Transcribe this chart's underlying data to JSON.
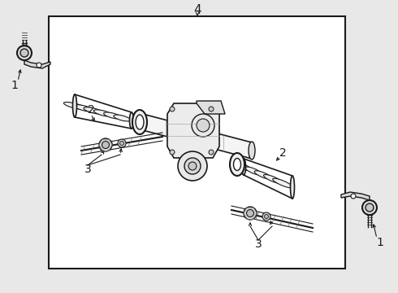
{
  "bg_color": "#e8e8e8",
  "line_color": "#1a1a1a",
  "box_color": "#ffffff",
  "labels": {
    "1_left": "1",
    "1_right": "1",
    "2_left": "2",
    "2_right": "2",
    "3_left": "3",
    "3_right": "3",
    "4_top": "4"
  },
  "figsize": [
    4.9,
    3.6
  ],
  "dpi": 100
}
